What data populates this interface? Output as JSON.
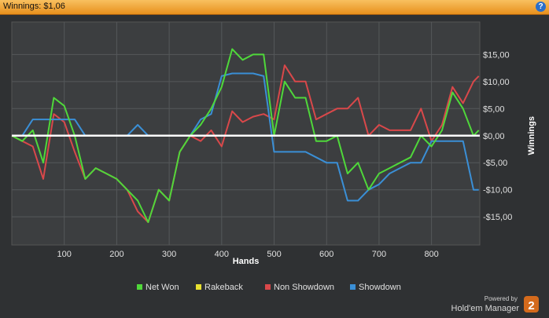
{
  "header": {
    "title": "Winnings: $1,06",
    "help": "?"
  },
  "branding": {
    "powered": "Powered by",
    "product": "Hold'em Manager",
    "badge": "2"
  },
  "chart_data": {
    "type": "line",
    "x_label": "Hands",
    "y_label": "Winnings",
    "x": [
      0,
      20,
      40,
      60,
      80,
      100,
      120,
      140,
      160,
      180,
      200,
      220,
      240,
      260,
      280,
      300,
      320,
      340,
      360,
      380,
      400,
      420,
      440,
      460,
      480,
      500,
      520,
      540,
      560,
      580,
      600,
      620,
      640,
      660,
      680,
      700,
      720,
      740,
      760,
      780,
      800,
      820,
      840,
      860,
      880,
      890
    ],
    "series": [
      {
        "name": "Net Won",
        "color": "#4fd83a",
        "values": [
          0,
          -1,
          1,
          -5,
          7,
          5.5,
          0,
          -8,
          -6,
          -7,
          -8,
          -10,
          -12,
          -16,
          -10,
          -12,
          -3,
          0,
          2,
          5,
          9,
          16,
          14,
          15,
          15,
          0,
          10,
          7,
          7,
          -1,
          -1,
          0,
          -7,
          -5,
          -10,
          -7,
          -6,
          -5,
          -4,
          0,
          -2,
          1,
          8,
          5,
          0,
          1
        ]
      },
      {
        "name": "Rakeback",
        "color": "#e8e030",
        "values": [
          0,
          0,
          0,
          0,
          0,
          0,
          0,
          0,
          0,
          0,
          0,
          0,
          0,
          0,
          0,
          0,
          0,
          0,
          0,
          0,
          0,
          0,
          0,
          0,
          0,
          0,
          0,
          0,
          0,
          0,
          0,
          0,
          0,
          0,
          0,
          0,
          0,
          0,
          0,
          0,
          0,
          0,
          0,
          0,
          0,
          0
        ]
      },
      {
        "name": "Non Showdown",
        "color": "#d9484a",
        "values": [
          0,
          -1,
          -2,
          -8,
          4,
          2.5,
          -3,
          -8,
          -6,
          -7,
          -8,
          -10,
          -14,
          -16,
          -10,
          -12,
          -3,
          0,
          -1,
          1,
          -2,
          4.5,
          2.5,
          3.5,
          4,
          3,
          13,
          10,
          10,
          3,
          4,
          5,
          5,
          7,
          0,
          2,
          1,
          1,
          1,
          5,
          -1,
          2,
          9,
          6,
          10,
          11
        ]
      },
      {
        "name": "Showdown",
        "color": "#3a8fd6",
        "values": [
          0,
          0,
          3,
          3,
          3,
          3,
          3,
          0,
          0,
          0,
          0,
          0,
          2,
          0,
          0,
          0,
          0,
          0,
          3,
          4,
          11,
          11.5,
          11.5,
          11.5,
          11,
          -3,
          -3,
          -3,
          -3,
          -4,
          -5,
          -5,
          -12,
          -12,
          -10,
          -9,
          -7,
          -6,
          -5,
          -5,
          -1,
          -1,
          -1,
          -1,
          -10,
          -10
        ]
      }
    ],
    "xlim": [
      0,
      892
    ],
    "ylim": [
      -20.2,
      21
    ],
    "xticks": [
      100,
      200,
      300,
      400,
      500,
      600,
      700,
      800
    ],
    "yticks": [
      {
        "value": -15,
        "label": "-$15,00"
      },
      {
        "value": -10,
        "label": "-$10,00"
      },
      {
        "value": -5,
        "label": "-$5,00"
      },
      {
        "value": 0,
        "label": "$0,00"
      },
      {
        "value": 5,
        "label": "$5,00"
      },
      {
        "value": 10,
        "label": "$10,00"
      },
      {
        "value": 15,
        "label": "$15,00"
      }
    ],
    "grid": true,
    "legend": "bottom"
  }
}
